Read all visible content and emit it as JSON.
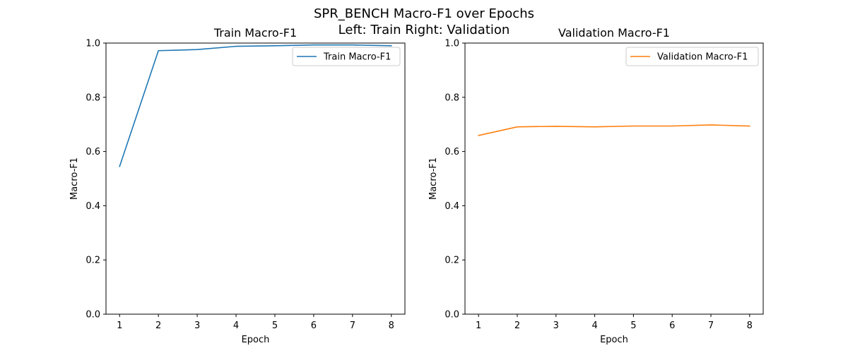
{
  "figure": {
    "title_line1": "SPR_BENCH Macro-F1 over Epochs",
    "title_line2": "Left: Train  Right: Validation"
  },
  "chart_data": [
    {
      "type": "line",
      "title": "Train Macro-F1",
      "xlabel": "Epoch",
      "ylabel": "Macro-F1",
      "x": [
        1,
        2,
        3,
        4,
        5,
        6,
        7,
        8
      ],
      "xticks": [
        1,
        2,
        3,
        4,
        5,
        6,
        7,
        8
      ],
      "ylim": [
        0,
        1.0
      ],
      "yticks": [
        0.0,
        0.2,
        0.4,
        0.6,
        0.8,
        1.0
      ],
      "yticklabels": [
        "0.0",
        "0.2",
        "0.4",
        "0.6",
        "0.8",
        "1.0"
      ],
      "legend_position": "top-right",
      "grid": false,
      "series": [
        {
          "name": "Train Macro-F1",
          "color": "#1f77b4",
          "values": [
            0.545,
            0.972,
            0.976,
            0.988,
            0.99,
            0.993,
            0.993,
            0.99
          ]
        }
      ]
    },
    {
      "type": "line",
      "title": "Validation Macro-F1",
      "xlabel": "Epoch",
      "ylabel": "Macro-F1",
      "x": [
        1,
        2,
        3,
        4,
        5,
        6,
        7,
        8
      ],
      "xticks": [
        1,
        2,
        3,
        4,
        5,
        6,
        7,
        8
      ],
      "ylim": [
        0,
        1.0
      ],
      "yticks": [
        0.0,
        0.2,
        0.4,
        0.6,
        0.8,
        1.0
      ],
      "yticklabels": [
        "0.0",
        "0.2",
        "0.4",
        "0.6",
        "0.8",
        "1.0"
      ],
      "legend_position": "top-right",
      "grid": false,
      "series": [
        {
          "name": "Validation Macro-F1",
          "color": "#ff7f0e",
          "values": [
            0.659,
            0.691,
            0.693,
            0.691,
            0.694,
            0.694,
            0.698,
            0.694
          ]
        }
      ]
    }
  ]
}
